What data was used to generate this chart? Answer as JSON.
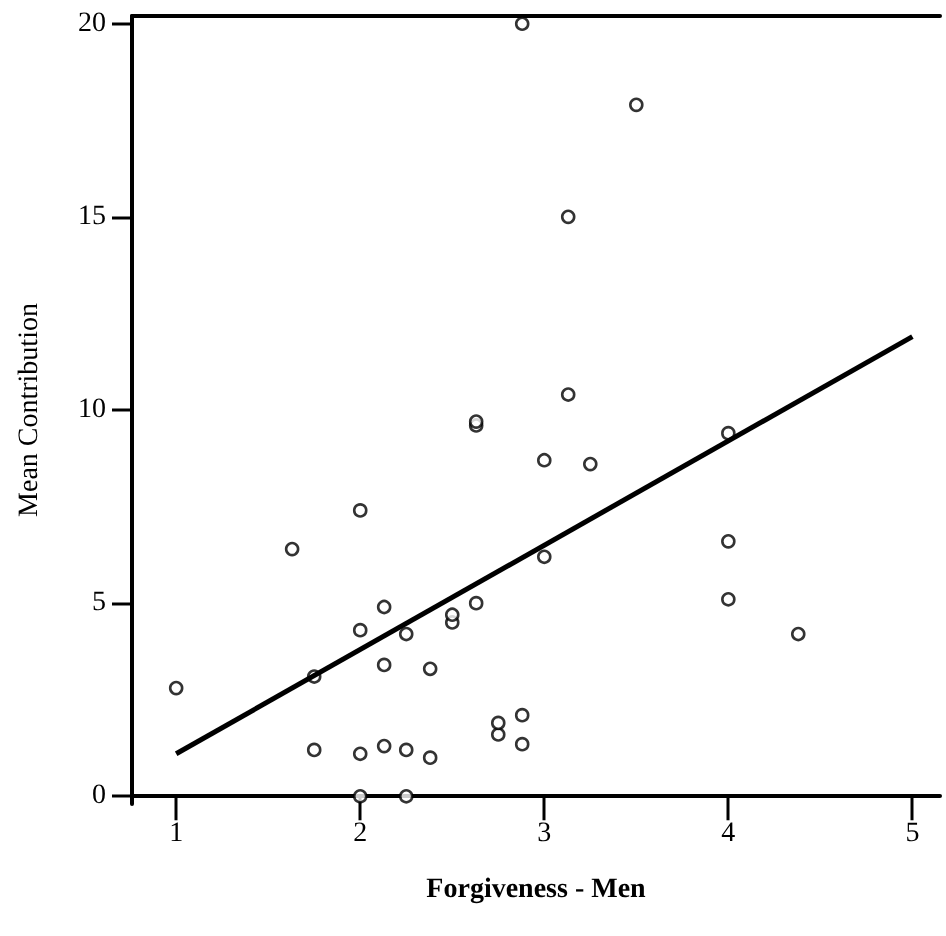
{
  "chart_data": {
    "type": "scatter",
    "xlabel": "Forgiveness - Men",
    "ylabel": "Mean Contribution",
    "xlim": [
      0.76,
      5.15
    ],
    "ylim": [
      -0.2,
      20.2
    ],
    "xticks": [
      1,
      2,
      3,
      4,
      5
    ],
    "yticks": [
      0,
      5,
      10,
      15,
      20
    ],
    "grid": false,
    "marker": "circle",
    "series": [
      {
        "color": "#000000",
        "x": [
          1.0,
          1.63,
          2.0,
          2.13,
          2.0,
          2.25,
          2.13,
          2.38,
          1.75,
          2.5,
          2.5,
          2.63,
          1.75,
          2.0,
          2.13,
          2.25,
          2.38,
          2.0,
          2.25,
          2.75,
          2.75,
          2.88,
          2.88,
          3.0,
          3.25,
          3.0,
          4.0,
          4.0,
          4.38,
          2.88,
          3.5,
          3.13,
          3.13,
          4.0,
          2.63,
          2.63
        ],
        "values": [
          2.8,
          6.4,
          7.4,
          4.9,
          4.3,
          4.2,
          3.4,
          3.3,
          3.1,
          4.5,
          4.7,
          5.0,
          1.2,
          1.1,
          1.3,
          1.2,
          1.0,
          0,
          0,
          1.6,
          1.9,
          2.1,
          1.35,
          8.7,
          8.6,
          6.2,
          6.6,
          5.1,
          4.2,
          20.0,
          17.9,
          15.0,
          10.4,
          9.4,
          9.6,
          9.7
        ]
      },
      {
        "type": "line",
        "color": "#000000",
        "marker": "none",
        "x": [
          1,
          5
        ],
        "values": [
          1.1,
          11.9
        ]
      }
    ]
  }
}
